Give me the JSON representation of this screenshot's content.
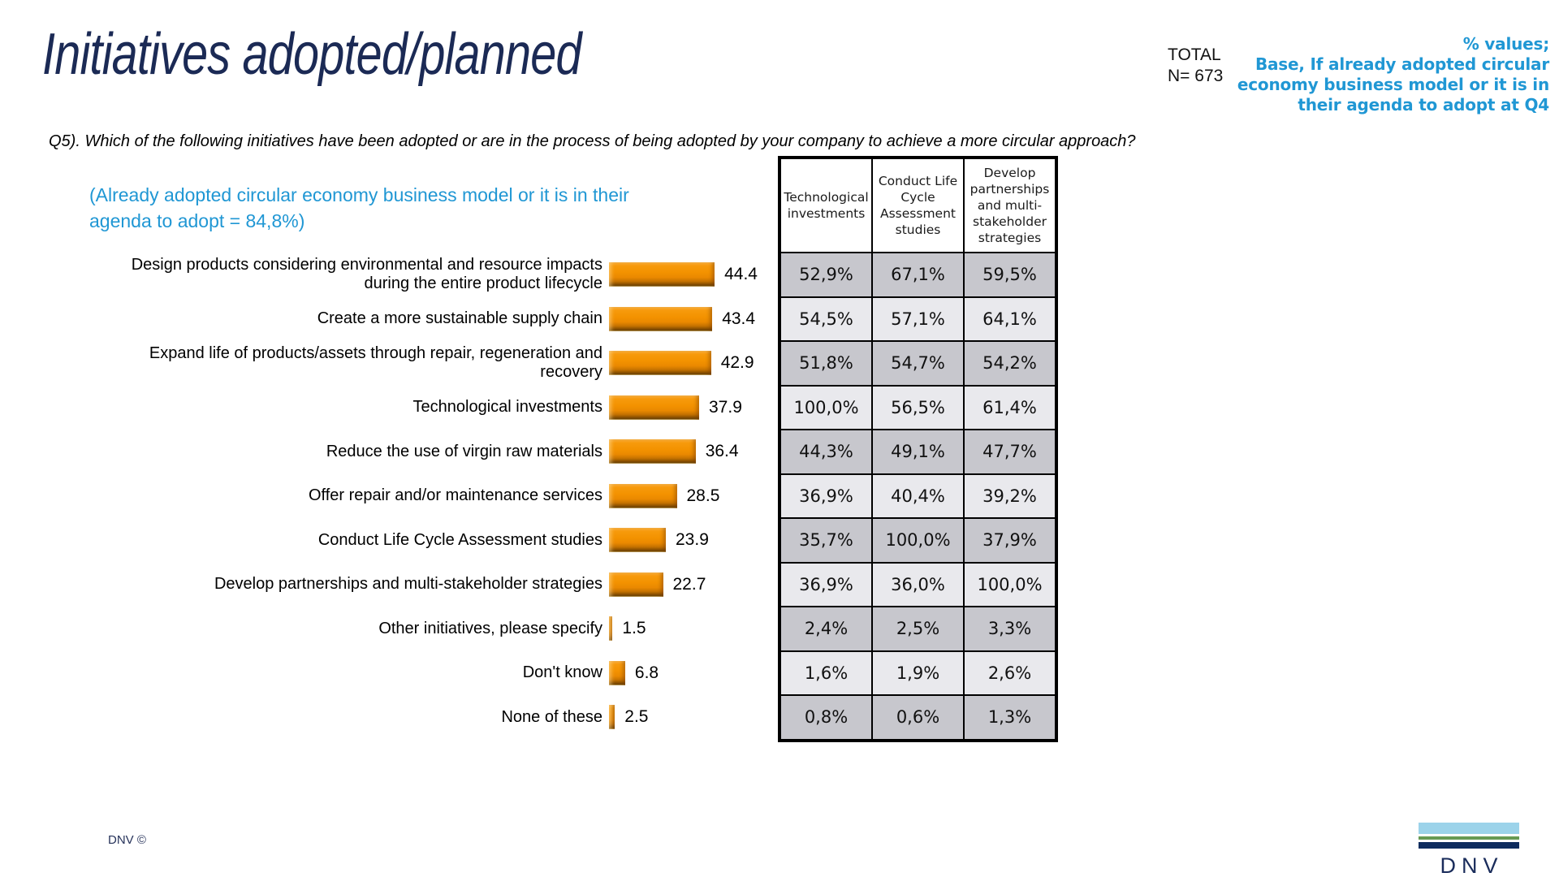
{
  "slide": {
    "title": "Initiatives adopted/planned",
    "total_label": "TOTAL",
    "total_n": "N= 673",
    "base_note": "% values;\nBase, If already adopted circular\neconomy business model or it is in\ntheir agenda to adopt at Q4",
    "question": "Q5). Which of the following initiatives have been adopted or are in the process of being adopted by your company to achieve a more circular approach?",
    "adoption_note": "(Already adopted circular economy business model or it is in their\nagenda to adopt = 84,8%)",
    "footer_left": "DNV ©",
    "logo_text": "DNV"
  },
  "chart_data": {
    "type": "bar",
    "orientation": "horizontal",
    "title": "Initiatives adopted/planned",
    "bar_color": "#F39200",
    "xlim": [
      0,
      50
    ],
    "grid": false,
    "categories": [
      "Design products considering environmental and resource impacts during the entire product lifecycle",
      "Create a more sustainable supply chain",
      "Expand life of products/assets through repair, regeneration and recovery",
      "Technological investments",
      "Reduce the use of virgin raw materials",
      "Offer repair and/or maintenance services",
      "Conduct Life Cycle Assessment studies",
      "Develop partnerships and multi-stakeholder strategies",
      "Other initiatives, please specify",
      "Don't know",
      "None of these"
    ],
    "values": [
      44.4,
      43.4,
      42.9,
      37.9,
      36.4,
      28.5,
      23.9,
      22.7,
      1.5,
      6.8,
      2.5
    ],
    "value_labels": [
      "44.4",
      "43.4",
      "42.9",
      "37.9",
      "36.4",
      "28.5",
      "23.9",
      "22.7",
      "1.5",
      "6.8",
      "2.5"
    ]
  },
  "table": {
    "columns": [
      "Technological investments",
      "Conduct Life Cycle Assessment studies",
      "Develop partnerships and multi-stakeholder strategies"
    ],
    "rows": [
      [
        "52,9%",
        "67,1%",
        "59,5%"
      ],
      [
        "54,5%",
        "57,1%",
        "64,1%"
      ],
      [
        "51,8%",
        "54,7%",
        "54,2%"
      ],
      [
        "100,0%",
        "56,5%",
        "61,4%"
      ],
      [
        "44,3%",
        "49,1%",
        "47,7%"
      ],
      [
        "36,9%",
        "40,4%",
        "39,2%"
      ],
      [
        "35,7%",
        "100,0%",
        "37,9%"
      ],
      [
        "36,9%",
        "36,0%",
        "100,0%"
      ],
      [
        "2,4%",
        "2,5%",
        "3,3%"
      ],
      [
        "1,6%",
        "1,9%",
        "2,6%"
      ],
      [
        "0,8%",
        "0,6%",
        "1,3%"
      ]
    ],
    "row_colors": {
      "odd": "#C7C7CD",
      "even": "#E9E9ED"
    }
  }
}
